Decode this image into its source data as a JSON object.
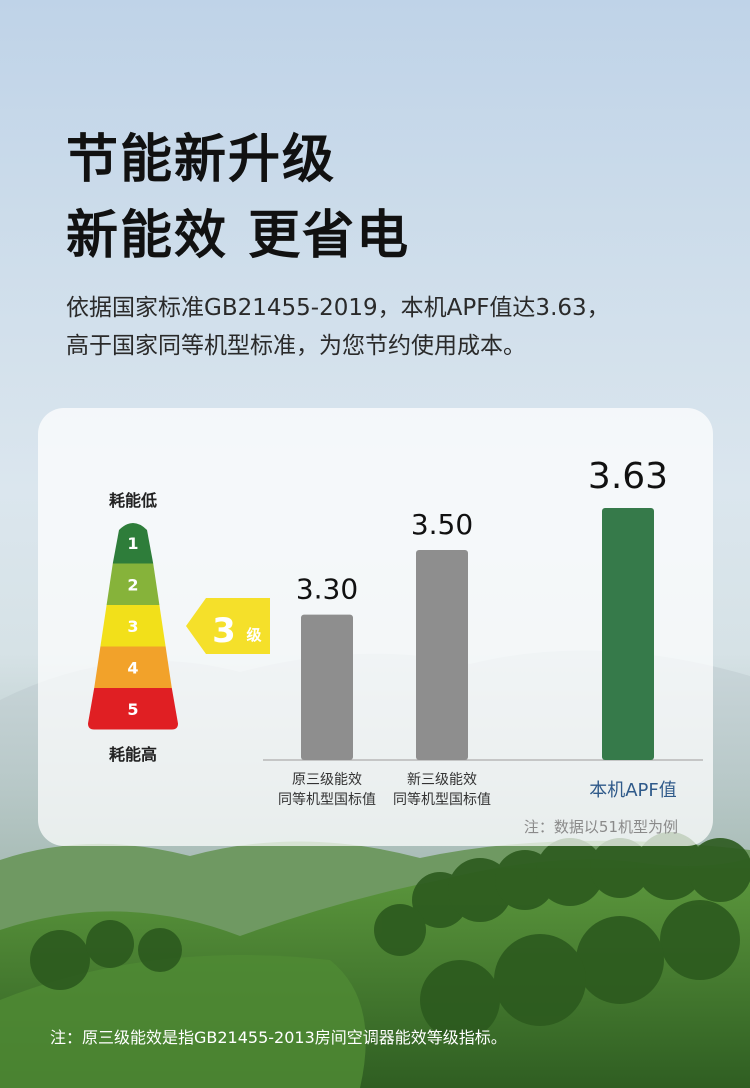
{
  "headline": {
    "line1": "节能新升级",
    "line2": "新能效 更省电"
  },
  "subtitle": {
    "line1": "依据国家标准GB21455-2019，本机APF值达3.63，",
    "line2": "高于国家同等机型标准，为您节约使用成本。"
  },
  "energy_scale": {
    "top_label": "耗能低",
    "bottom_label": "耗能高",
    "levels": [
      {
        "label": "1",
        "color": "#2e7d3a"
      },
      {
        "label": "2",
        "color": "#86b33a"
      },
      {
        "label": "3",
        "color": "#f2e01a"
      },
      {
        "label": "4",
        "color": "#f2a22a"
      },
      {
        "label": "5",
        "color": "#e01f23"
      }
    ],
    "indicator": {
      "number": "3",
      "unit": "级",
      "color": "#f5e02a"
    }
  },
  "chart_data": {
    "type": "bar",
    "categories": [
      {
        "line1": "原三级能效",
        "line2": "同等机型国标值"
      },
      {
        "line1": "新三级能效",
        "line2": "同等机型国标值"
      },
      {
        "line1": "本机APF值",
        "line2": ""
      }
    ],
    "values": [
      3.3,
      3.5,
      3.63
    ],
    "value_labels": [
      "3.30",
      "3.50",
      "3.63"
    ],
    "bar_colors": [
      "#8e8e8e",
      "#8e8e8e",
      "#367a4a"
    ],
    "title": "",
    "xlabel": "",
    "ylabel": "",
    "grid": false,
    "legend": "none"
  },
  "chart_note": "注：数据以51机型为例",
  "footnote": "注：原三级能效是指GB21455-2013房间空调器能效等级指标。"
}
